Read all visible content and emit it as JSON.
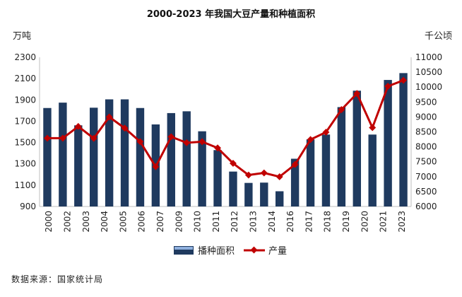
{
  "chart_data": {
    "type": "bar",
    "title": "2000-2023 年我国大豆产量和种植面积",
    "left_unit": "万吨",
    "right_unit": "千公顷",
    "source": "数据来源：国家统计局",
    "legend_position": "bottom",
    "grid": false,
    "categories": [
      "2000",
      "2001",
      "2002",
      "2003",
      "2004",
      "2005",
      "2006",
      "2007",
      "2008",
      "2009",
      "2010",
      "2011",
      "2012",
      "2013",
      "2014",
      "2015",
      "2016",
      "2017",
      "2018",
      "2019",
      "2020",
      "2021",
      "2022",
      "2023"
    ],
    "x_tick_labels": [
      "2000",
      "2002",
      "2003",
      "2004",
      "2005",
      "2006",
      "2007",
      "2009",
      "2010",
      "2011",
      "2012",
      "2013",
      "2014",
      "2016",
      "2017",
      "2018",
      "2019",
      "2020",
      "2021",
      "2023"
    ],
    "left_axis": {
      "min": 900,
      "max": 2300,
      "ticks": [
        900,
        1100,
        1300,
        1500,
        1700,
        1900,
        2100,
        2300
      ]
    },
    "right_axis": {
      "min": 6000,
      "max": 11000,
      "ticks": [
        6000,
        6500,
        7000,
        7500,
        8000,
        8500,
        9000,
        9500,
        10000,
        10500,
        11000
      ]
    },
    "series": [
      {
        "name": "播种面积",
        "kind": "bar",
        "axis": "right",
        "color": "#1f3a5f",
        "values": [
          9300,
          9480,
          8720,
          9310,
          9590,
          9590,
          9300,
          8750,
          9130,
          9190,
          8520,
          7890,
          7170,
          6790,
          6800,
          6510,
          7600,
          8250,
          8410,
          9330,
          9880,
          8410,
          10240,
          10470
        ]
      },
      {
        "name": "产量",
        "kind": "line",
        "axis": "left",
        "color": "#c00000",
        "values": [
          1541,
          1541,
          1651,
          1539,
          1740,
          1635,
          1508,
          1273,
          1554,
          1498,
          1508,
          1449,
          1305,
          1195,
          1215,
          1179,
          1294,
          1528,
          1597,
          1809,
          1960,
          1640,
          2028,
          2084
        ]
      }
    ]
  }
}
